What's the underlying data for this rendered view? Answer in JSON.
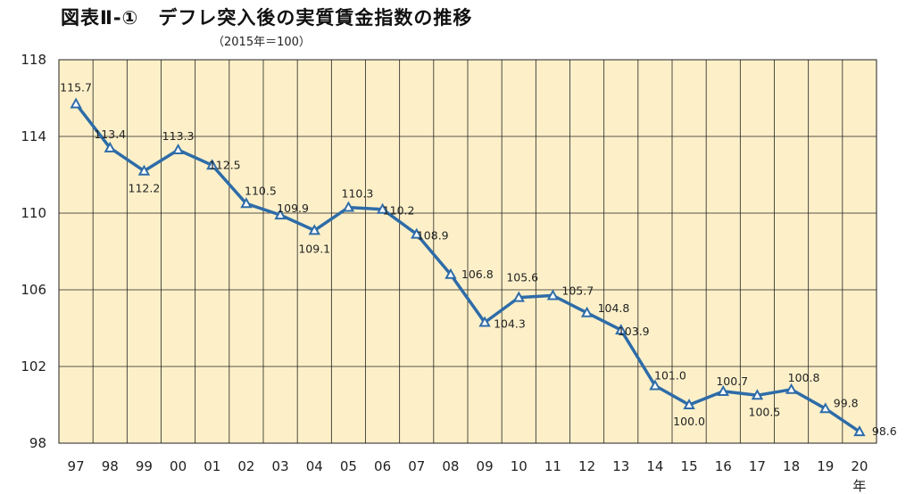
{
  "title": "図表Ⅱ-①　デフレ突入後の実質賃金指数の推移",
  "subtitle": "（2015年＝100）",
  "chart_data": {
    "type": "line",
    "title": "図表Ⅱ-①　デフレ突入後の実質賃金指数の推移",
    "subtitle": "（2015年＝100）",
    "xlabel": "年",
    "ylabel": "",
    "categories": [
      "97",
      "98",
      "99",
      "00",
      "01",
      "02",
      "03",
      "04",
      "05",
      "06",
      "07",
      "08",
      "09",
      "10",
      "11",
      "12",
      "13",
      "14",
      "15",
      "16",
      "17",
      "18",
      "19",
      "20"
    ],
    "series": [
      {
        "values": [
          115.7,
          113.4,
          112.2,
          113.3,
          112.5,
          110.5,
          109.9,
          109.1,
          110.3,
          110.2,
          108.9,
          106.8,
          104.3,
          105.6,
          105.7,
          104.8,
          103.9,
          101.0,
          100.0,
          100.7,
          100.5,
          100.8,
          99.8,
          98.6
        ]
      }
    ],
    "data_labels": [
      "115.7",
      "113.4",
      "112.2",
      "113.3",
      "112.5",
      "110.5",
      "109.9",
      "109.1",
      "110.3",
      "110.2",
      "108.9",
      "106.8",
      "104.3",
      "105.6",
      "105.7",
      "104.8",
      "103.9",
      "101.0",
      "100.0",
      "100.7",
      "100.5",
      "100.8",
      "99.8",
      "98.6"
    ],
    "ylim": [
      98,
      118
    ],
    "yticks": [
      "118",
      "114",
      "110",
      "106",
      "102",
      "98"
    ],
    "grid": true,
    "legend": "none",
    "colors": {
      "background": "#fdf0c9",
      "line": "#2e6ca8",
      "grid": "#222222"
    }
  }
}
